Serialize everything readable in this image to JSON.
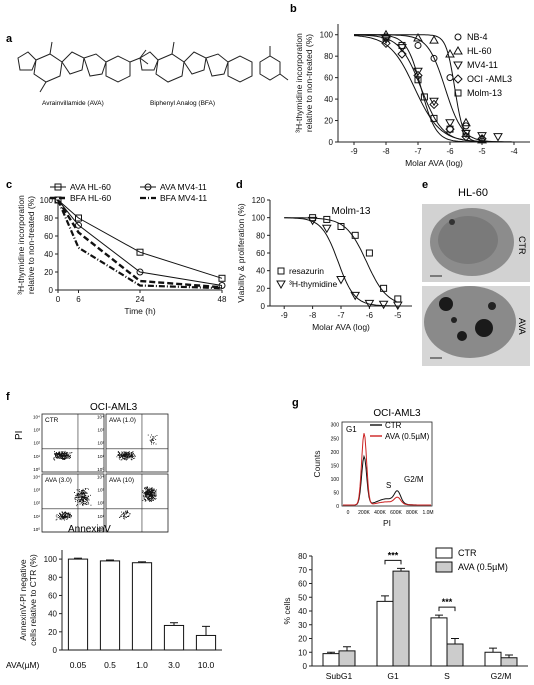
{
  "panel_labels": {
    "a": "a",
    "b": "b",
    "c": "c",
    "d": "d",
    "e": "e",
    "f": "f",
    "g": "g"
  },
  "panel_a": {
    "names": [
      "Avrainvillamide (AVA)",
      "Biphenyl Analog (BFA)"
    ]
  },
  "chart_data": [
    {
      "id": "b",
      "type": "line",
      "xlabel": "Molar AVA (log)",
      "ylabel": [
        "3H-thymidine incorporation",
        "relative to non-treated (%)"
      ],
      "xlim": [
        -9.5,
        -3.5
      ],
      "ylim": [
        0,
        110
      ],
      "xticks": [
        -9,
        -8,
        -7,
        -6,
        -5,
        -4
      ],
      "yticks": [
        0,
        20,
        40,
        60,
        80,
        100
      ],
      "series": [
        {
          "name": "NB-4",
          "marker": "circle",
          "ec50": -6.15,
          "hill": 1.6,
          "points": [
            [
              -8,
              98
            ],
            [
              -7,
              90
            ],
            [
              -6.5,
              78
            ],
            [
              -6,
              60
            ],
            [
              -5.5,
              15
            ],
            [
              -5,
              3
            ]
          ]
        },
        {
          "name": "HL-60",
          "marker": "triangle-up",
          "ec50": -5.85,
          "hill": 3.2,
          "points": [
            [
              -8,
              100
            ],
            [
              -7,
              97
            ],
            [
              -6.5,
              95
            ],
            [
              -6,
              82
            ],
            [
              -5.5,
              18
            ],
            [
              -5,
              2
            ]
          ]
        },
        {
          "name": "MV4-11",
          "marker": "triangle-down",
          "ec50": -6.9,
          "hill": 1.3,
          "points": [
            [
              -8,
              96
            ],
            [
              -7.5,
              88
            ],
            [
              -7,
              66
            ],
            [
              -6.5,
              38
            ],
            [
              -6,
              18
            ],
            [
              -5.5,
              8
            ],
            [
              -5,
              6
            ],
            [
              -4.5,
              5
            ]
          ]
        },
        {
          "name": "OCI -AML3",
          "marker": "diamond",
          "ec50": -7.1,
          "hill": 1.1,
          "points": [
            [
              -8,
              92
            ],
            [
              -7.5,
              82
            ],
            [
              -7,
              62
            ],
            [
              -6.5,
              35
            ],
            [
              -6,
              12
            ],
            [
              -5.5,
              5
            ],
            [
              -5,
              3
            ]
          ]
        },
        {
          "name": "Molm-13",
          "marker": "square",
          "ec50": -6.9,
          "hill": 1.9,
          "points": [
            [
              -8,
              97
            ],
            [
              -7.5,
              90
            ],
            [
              -7,
              58
            ],
            [
              -6.8,
              42
            ],
            [
              -6.5,
              22
            ],
            [
              -6,
              12
            ],
            [
              -5.5,
              8
            ]
          ]
        }
      ]
    },
    {
      "id": "c",
      "type": "line",
      "xlabel": "Time (h)",
      "ylabel": [
        "3H-thymidine incorporation",
        "relative to non-treated (%)"
      ],
      "xlim": [
        0,
        48
      ],
      "ylim": [
        0,
        100
      ],
      "xticks": [
        0,
        6,
        24,
        48
      ],
      "yticks": [
        0,
        20,
        40,
        60,
        80,
        100
      ],
      "series": [
        {
          "name": "AVA HL-60",
          "marker": "square",
          "dash": "solid",
          "x": [
            0,
            6,
            24,
            48
          ],
          "values": [
            100,
            80,
            42,
            13
          ]
        },
        {
          "name": "AVA MV4-11",
          "marker": "circle",
          "dash": "solid",
          "x": [
            0,
            6,
            24,
            48
          ],
          "values": [
            100,
            72,
            20,
            5
          ]
        },
        {
          "name": "BFA HL-60",
          "marker": "none",
          "dash": "bold-dash",
          "x": [
            0,
            6,
            24,
            48
          ],
          "values": [
            100,
            64,
            10,
            3
          ]
        },
        {
          "name": "BFA MV4-11",
          "marker": "none",
          "dash": "dash-dot",
          "x": [
            0,
            6,
            24,
            48
          ],
          "values": [
            100,
            47,
            5,
            2
          ]
        }
      ]
    },
    {
      "id": "d",
      "type": "line",
      "title": "Molm-13",
      "xlabel": "Molar AVA (log)",
      "ylabel": "Viability & proliferation (%)",
      "xlim": [
        -9.5,
        -4.5
      ],
      "ylim": [
        0,
        120
      ],
      "xticks": [
        -9,
        -8,
        -7,
        -6,
        -5
      ],
      "yticks": [
        0,
        20,
        40,
        60,
        80,
        100,
        120
      ],
      "series": [
        {
          "name": "resazurin",
          "marker": "square",
          "ec50": -6.1,
          "hill": 1.2,
          "points": [
            [
              -8,
              100
            ],
            [
              -7.5,
              98
            ],
            [
              -7,
              90
            ],
            [
              -6.5,
              80
            ],
            [
              -6,
              60
            ],
            [
              -5.5,
              20
            ],
            [
              -5,
              8
            ]
          ]
        },
        {
          "name": "3H-thymidine",
          "marker": "triangle-down",
          "ec50": -7.1,
          "hill": 1.5,
          "points": [
            [
              -8,
              97
            ],
            [
              -7.5,
              88
            ],
            [
              -7,
              30
            ],
            [
              -6.5,
              12
            ],
            [
              -6,
              3
            ],
            [
              -5.5,
              2
            ],
            [
              -5,
              1
            ]
          ]
        }
      ]
    },
    {
      "id": "f-bar",
      "type": "bar",
      "ylabel": [
        "AnnexinV-PI negative",
        "cells relative to CTR (%)"
      ],
      "xlabel_prefix": "AVA(µM)",
      "categories": [
        "0.05",
        "0.5",
        "1.0",
        "3.0",
        "10.0"
      ],
      "values": [
        100,
        98,
        96,
        27,
        16
      ],
      "errors": [
        1,
        1,
        1,
        3,
        10
      ],
      "ylim": [
        0,
        110
      ],
      "yticks": [
        0,
        20,
        40,
        60,
        80,
        100
      ]
    },
    {
      "id": "g-bar",
      "type": "bar",
      "ylabel": "% cells",
      "categories": [
        "SubG1",
        "G1",
        "S",
        "G2/M"
      ],
      "series": [
        {
          "name": "CTR",
          "values": [
            9,
            47,
            35,
            10
          ],
          "errors": [
            1,
            4,
            2,
            3
          ]
        },
        {
          "name": "AVA (0.5µM)",
          "values": [
            11,
            69,
            16,
            6
          ],
          "errors": [
            3,
            2,
            4,
            2
          ]
        }
      ],
      "significance": [
        {
          "category": "G1",
          "label": "***"
        },
        {
          "category": "S",
          "label": "***"
        }
      ],
      "ylim": [
        0,
        80
      ],
      "yticks": [
        0,
        10,
        20,
        30,
        40,
        50,
        60,
        70,
        80
      ]
    }
  ],
  "panel_e": {
    "title": "HL-60",
    "labels": [
      "CTR",
      "AVA"
    ]
  },
  "panel_f_flow": {
    "title": "OCI-AML3",
    "xlabel": "AnnexinV",
    "ylabel": "PI",
    "quadrants": [
      "CTR",
      "AVA (1.0)",
      "AVA (3.0)",
      "AVA (10)"
    ],
    "axis_ticks": [
      "10⁰",
      "10¹",
      "10²",
      "10³",
      "10⁴"
    ]
  },
  "panel_g_hist": {
    "title": "OCI-AML3",
    "ylabel": "Counts",
    "xlabel": "PI",
    "legend": [
      {
        "name": "CTR",
        "color": "#111111"
      },
      {
        "name": "AVA (0.5µM)",
        "color": "#cc2222"
      }
    ],
    "peak_labels": [
      "G1",
      "S",
      "G2/M"
    ],
    "xticks": [
      "0",
      "200K",
      "400K",
      "600K",
      "800K",
      "1.0M"
    ],
    "yticks": [
      "0",
      "50",
      "100",
      "150",
      "200",
      "250",
      "300"
    ]
  },
  "colors": {
    "ava_bar": "#cccccc",
    "ctr_bar": "#ffffff",
    "hist_ava": "#cc2222",
    "hist_ctr": "#111111"
  }
}
